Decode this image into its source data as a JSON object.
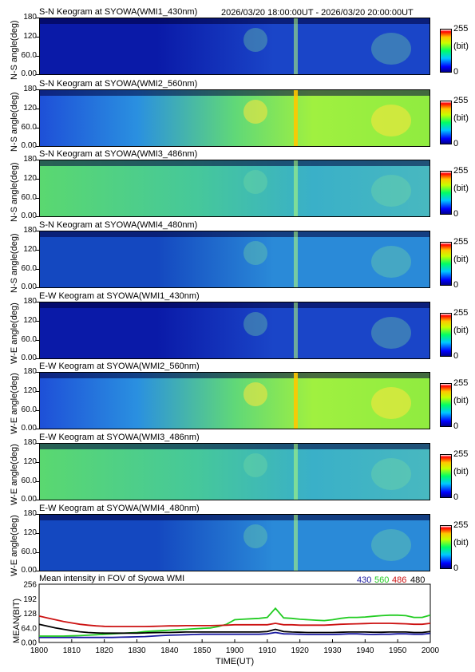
{
  "date_range": "2026/03/20 18:00:00UT - 2026/03/20 20:00:00UT",
  "colorbar": {
    "max": "255",
    "unit": "(bit)",
    "min": "0"
  },
  "y_ticks": [
    "180",
    "120",
    "60.0",
    "0.00"
  ],
  "panels": [
    {
      "title": "S-N Keogram at SYOWA(WMI1_430nm)",
      "ylabel": "N-S angle(deg)",
      "palette": "dark"
    },
    {
      "title": "S-N Keogram at SYOWA(WMI2_560nm)",
      "ylabel": "N-S angle(deg)",
      "palette": "bright"
    },
    {
      "title": "S-N Keogram at SYOWA(WMI3_486nm)",
      "ylabel": "N-S angle(deg)",
      "palette": "green"
    },
    {
      "title": "S-N Keogram at SYOWA(WMI4_480nm)",
      "ylabel": "N-S angle(deg)",
      "palette": "mid"
    },
    {
      "title": "E-W Keogram at SYOWA(WMI1_430nm)",
      "ylabel": "W-E angle(deg)",
      "palette": "dark"
    },
    {
      "title": "E-W Keogram at SYOWA(WMI2_560nm)",
      "ylabel": "W-E angle(deg)",
      "palette": "bright"
    },
    {
      "title": "E-W Keogram at SYOWA(WMI3_486nm)",
      "ylabel": "W-E angle(deg)",
      "palette": "green"
    },
    {
      "title": "E-W Keogram at SYOWA(WMI4_480nm)",
      "ylabel": "W-E angle(deg)",
      "palette": "mid"
    }
  ],
  "chart_data": {
    "type": "line",
    "title": "Mean intensity in FOV of Syowa WMI",
    "xlabel": "TIME(UT)",
    "ylabel": "MEAN(BIT)",
    "x_ticks": [
      "1800",
      "1810",
      "1820",
      "1830",
      "1840",
      "1850",
      "1900",
      "1910",
      "1920",
      "1930",
      "1940",
      "1950",
      "2000"
    ],
    "y_ticks": [
      "256",
      "192",
      "128",
      "64.0",
      "0.00"
    ],
    "ylim": [
      0,
      256
    ],
    "series": [
      {
        "name": "430",
        "color": "#1a1aa0",
        "values": [
          22,
          22,
          22,
          22,
          22,
          22,
          22,
          22,
          22,
          22,
          23,
          24,
          25,
          26,
          28,
          30,
          32,
          33,
          34,
          35,
          36,
          36,
          36,
          36,
          36,
          36,
          36,
          36,
          38,
          44,
          38,
          37,
          36,
          35,
          35,
          35,
          35,
          36,
          38,
          38,
          36,
          35,
          36,
          36,
          38,
          38,
          36,
          36,
          40
        ]
      },
      {
        "name": "560",
        "color": "#22cc22",
        "values": [
          28,
          28,
          28,
          28,
          29,
          30,
          32,
          34,
          36,
          38,
          40,
          42,
          44,
          48,
          50,
          52,
          54,
          56,
          58,
          60,
          62,
          64,
          70,
          80,
          100,
          102,
          104,
          106,
          110,
          150,
          108,
          106,
          102,
          100,
          98,
          96,
          100,
          106,
          110,
          110,
          112,
          115,
          118,
          120,
          120,
          118,
          110,
          110,
          120
        ]
      },
      {
        "name": "486",
        "color": "#cc1111",
        "values": [
          116,
          108,
          100,
          92,
          86,
          80,
          76,
          73,
          71,
          70,
          70,
          70,
          70,
          70,
          71,
          72,
          73,
          73,
          74,
          74,
          74,
          74,
          75,
          76,
          78,
          78,
          78,
          78,
          78,
          84,
          78,
          78,
          76,
          76,
          76,
          76,
          78,
          80,
          81,
          82,
          83,
          84,
          84,
          84,
          83,
          82,
          80,
          80,
          84
        ]
      },
      {
        "name": "480",
        "color": "#000000",
        "values": [
          80,
          72,
          64,
          58,
          52,
          47,
          44,
          42,
          41,
          41,
          41,
          41,
          41,
          42,
          43,
          44,
          44,
          45,
          46,
          46,
          46,
          46,
          46,
          46,
          46,
          46,
          46,
          46,
          48,
          58,
          48,
          46,
          45,
          44,
          44,
          44,
          44,
          45,
          46,
          46,
          46,
          45,
          45,
          46,
          46,
          46,
          44,
          44,
          48
        ]
      }
    ]
  }
}
